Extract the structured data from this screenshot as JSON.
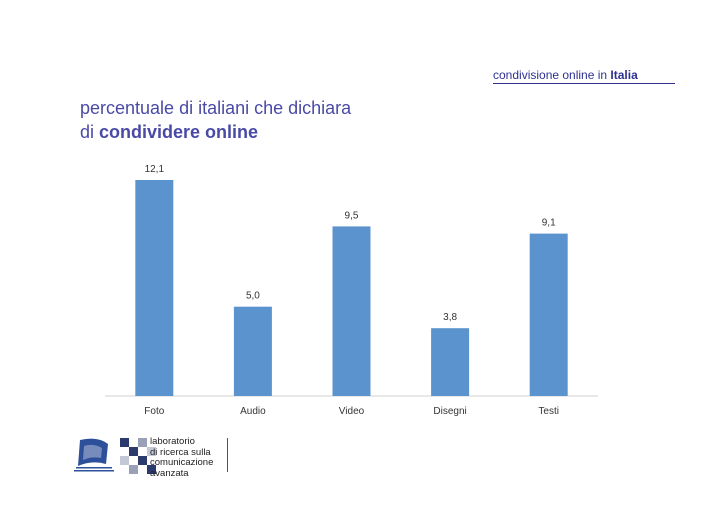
{
  "header": {
    "topic_prefix": "condivisione online  in ",
    "topic_bold": "Italia"
  },
  "title": {
    "line1": "percentuale di italiani che dichiara",
    "line2_prefix": "di ",
    "line2_bold": "condividere online"
  },
  "chart_data": {
    "type": "bar",
    "categories": [
      "Foto",
      "Audio",
      "Video",
      "Disegni",
      "Testi"
    ],
    "values": [
      12.1,
      5.0,
      9.5,
      3.8,
      9.1
    ],
    "value_labels": [
      "12,1",
      "5,0",
      "9,5",
      "3,8",
      "9,1"
    ],
    "ylim": [
      0,
      12.1
    ],
    "grid": false,
    "bar_color": "#5b93cf"
  },
  "footer": {
    "lab_lines": [
      "laboratorio",
      "di ricerca sulla",
      "comunicazione",
      "avanzata"
    ]
  },
  "colors": {
    "accent": "#2e3192",
    "title": "#4a4aa6"
  }
}
